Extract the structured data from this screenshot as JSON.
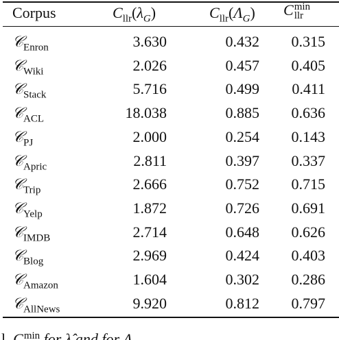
{
  "table": {
    "header": [
      "Corpus",
      {
        "symbol": "C",
        "sub": "llr",
        "open": "(",
        "arg": "λ",
        "arg_sub": "G",
        "close": ")"
      },
      {
        "symbol": "C",
        "sub": "llr",
        "open": "(",
        "arg": "Λ",
        "arg_sub": "G",
        "close": ")"
      },
      {
        "symbol": "C",
        "sup": "min",
        "sub": "llr"
      }
    ],
    "rows": [
      [
        {
          "symbol": "𝒞",
          "sub": "Enron"
        },
        "3.630",
        "0.432",
        "0.315"
      ],
      [
        {
          "symbol": "𝒞",
          "sub": "Wiki"
        },
        "2.026",
        "0.457",
        "0.405"
      ],
      [
        {
          "symbol": "𝒞",
          "sub": "Stack"
        },
        "5.716",
        "0.499",
        "0.411"
      ],
      [
        {
          "symbol": "𝒞",
          "sub": "ACL"
        },
        "18.038",
        "0.885",
        "0.636"
      ],
      [
        {
          "symbol": "𝒞",
          "sub": "PJ"
        },
        "2.000",
        "0.254",
        "0.143"
      ],
      [
        {
          "symbol": "𝒞",
          "sub": "Apric"
        },
        "2.811",
        "0.397",
        "0.337"
      ],
      [
        {
          "symbol": "𝒞",
          "sub": "Trip"
        },
        "2.666",
        "0.752",
        "0.715"
      ],
      [
        {
          "symbol": "𝒞",
          "sub": "Yelp"
        },
        "1.872",
        "0.726",
        "0.691"
      ],
      [
        {
          "symbol": "𝒞",
          "sub": "IMDB"
        },
        "2.714",
        "0.648",
        "0.626"
      ],
      [
        {
          "symbol": "𝒞",
          "sub": "Blog"
        },
        "2.969",
        "0.424",
        "0.403"
      ],
      [
        {
          "symbol": "𝒞",
          "sub": "Amazon"
        },
        "1.604",
        "0.302",
        "0.286"
      ],
      [
        {
          "symbol": "𝒞",
          "sub": "AllNews"
        },
        "9.920",
        "0.812",
        "0.797"
      ]
    ]
  },
  "caption_fragment": {
    "start": "l. ",
    "symbol": "C",
    "sup": "min",
    "sub": "llr",
    "middle": " for λ̂ and for ",
    "end": "Λ"
  }
}
